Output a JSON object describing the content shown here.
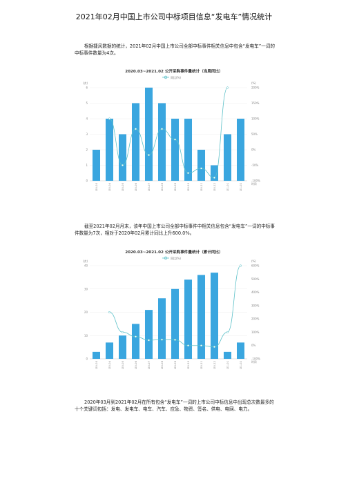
{
  "page": {
    "title": "2021年02月中国上市公司中标项目信息“发电车”情况统计",
    "para1": "根据捷风数据的统计，2021年02月中国上市公司全部中标事件相关信息中包含“发电车”一词的中标事件数量为4次。",
    "para2": "截至2021年02月月末，该年中国上市公司全部中标事件中相关信息包含“发电车”一词的中标事件数量为7次，相对于2020年02月累计同比上升600.0%。",
    "para3": "2020年03月到2021年02月在所有包含“发电车”一词的上市公司中标信息中出现总次数最多的十个关键词包括：发电、发电车、电车、汽车、应急、物资、签名、供电、电网、电力。"
  },
  "chart_data": [
    {
      "type": "bar",
      "title": "2020.03~2021.02 公开采购事件量统计（当周同比）",
      "legend": "同比(%)",
      "left_unit": "(次)",
      "right_unit": "(%)",
      "x_unit": "时间",
      "categories": [
        "2020-03",
        "2020-04",
        "2020-05",
        "2020-06",
        "2020-07",
        "2020-08",
        "2020-09",
        "2020-10",
        "2020-11",
        "2020-12",
        "2021-01",
        "2021-02"
      ],
      "values": [
        2,
        4,
        3,
        5,
        6,
        5,
        4,
        4,
        2,
        1,
        3,
        4
      ],
      "line_values": [
        null,
        100,
        -50,
        67,
        -17,
        67,
        33,
        -75,
        -60,
        -90,
        200,
        null
      ],
      "ylim": [
        0,
        6
      ],
      "yticks": [
        "0",
        "1",
        "2",
        "3",
        "4",
        "5",
        "6"
      ],
      "y2lim": [
        -100,
        200
      ],
      "y2ticks": [
        "-100%",
        "-50%",
        "0%",
        "50%",
        "100%",
        "150%",
        "200%"
      ],
      "bar_color": "#3aa6df",
      "line_color": "#5bc0c8"
    },
    {
      "type": "bar",
      "title": "2020.03~2021.02 公开采购事件量统计（累计同比）",
      "legend": "同比(%)",
      "left_unit": "(次)",
      "right_unit": "(%)",
      "x_unit": "时间",
      "categories": [
        "2020-03",
        "2020-04",
        "2020-05",
        "2020-06",
        "2020-07",
        "2020-08",
        "2020-09",
        "2020-10",
        "2020-11",
        "2020-12",
        "2021-01",
        "2021-02"
      ],
      "values": [
        3,
        7,
        10,
        15,
        21,
        26,
        30,
        34,
        36,
        37,
        3,
        7
      ],
      "line_values": [
        null,
        250,
        100,
        67,
        40,
        44,
        43,
        0,
        0,
        -10,
        100,
        600
      ],
      "ylim": [
        0,
        40
      ],
      "yticks": [
        "0",
        "10",
        "20",
        "30",
        "40"
      ],
      "y2lim": [
        -100,
        600
      ],
      "y2ticks": [
        "-100%",
        "0%",
        "100%",
        "200%",
        "300%",
        "400%",
        "500%",
        "600%"
      ],
      "bar_color": "#3aa6df",
      "line_color": "#5bc0c8"
    }
  ]
}
